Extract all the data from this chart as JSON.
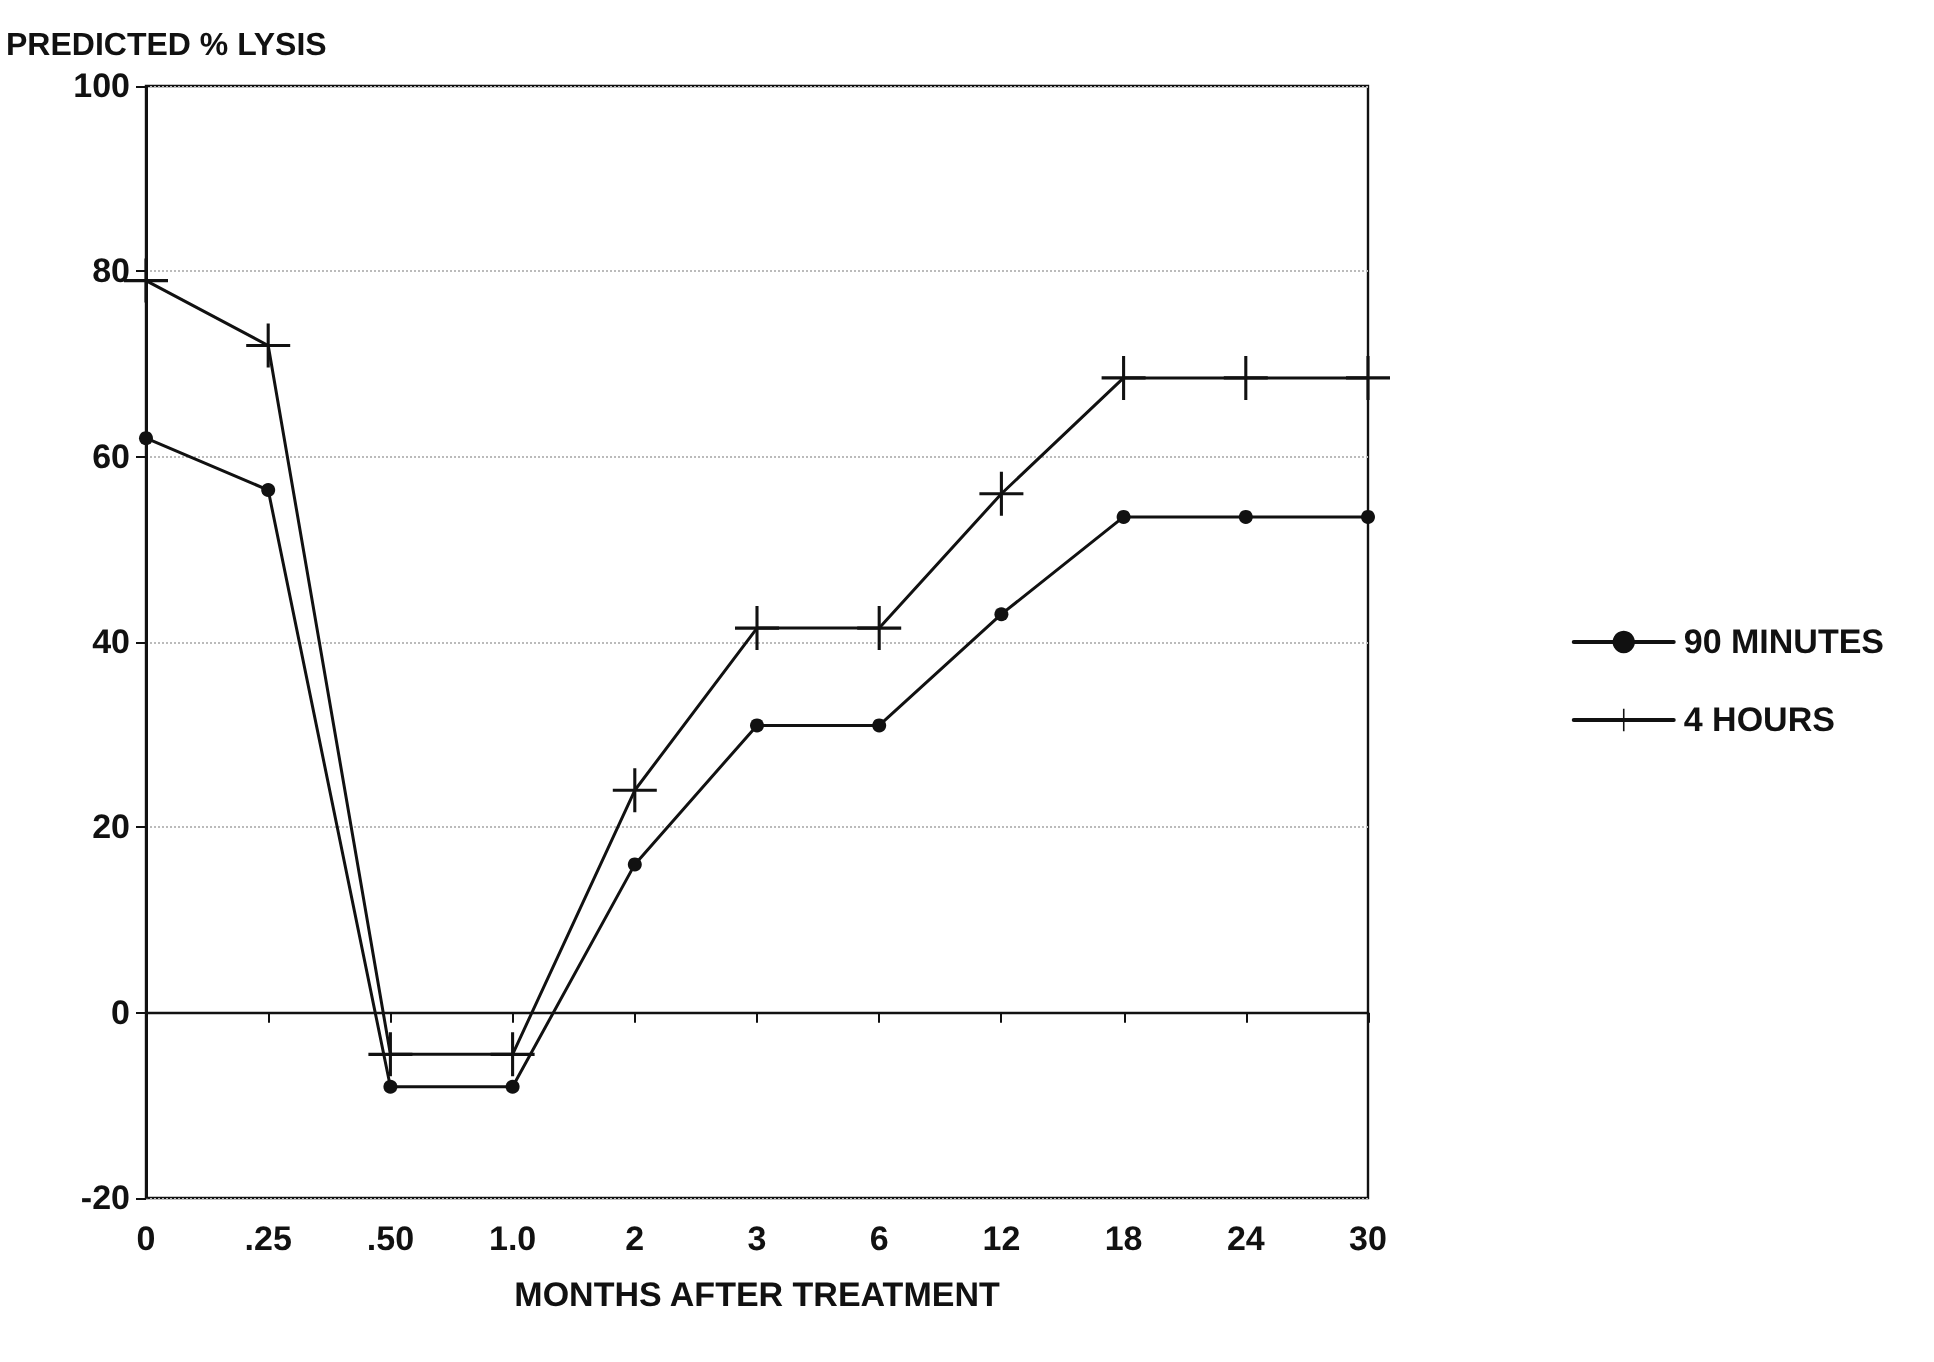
{
  "chart_data": {
    "type": "line",
    "ylabel": "PREDICTED % LYSIS",
    "xlabel": "MONTHS AFTER TREATMENT",
    "categories": [
      "0",
      ".25",
      ".50",
      "1.0",
      "2",
      "3",
      "6",
      "12",
      "18",
      "24",
      "30"
    ],
    "series": [
      {
        "name": "90 MINUTES",
        "color": "#111111",
        "marker": "circle",
        "values": [
          62,
          56.4,
          -8,
          -8,
          16,
          31,
          31,
          43,
          53.5,
          53.5,
          53.5
        ]
      },
      {
        "name": "4 HOURS",
        "color": "#111111",
        "marker": "cross",
        "values": [
          79,
          72,
          -4.5,
          -4.5,
          24,
          41.5,
          41.5,
          56,
          68.5,
          68.5,
          68.5
        ]
      }
    ],
    "ylim": [
      -20,
      100
    ],
    "yticks": [
      -20,
      0,
      20,
      40,
      60,
      80,
      100
    ],
    "grid": "y",
    "legend": "right",
    "line_style": "solid",
    "ref_lines": [
      {
        "axis": "y",
        "value": 0,
        "color": "#111111"
      }
    ]
  }
}
